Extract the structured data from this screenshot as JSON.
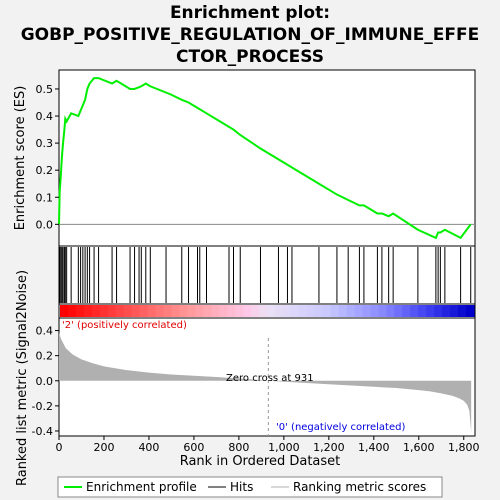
{
  "title_lines": [
    "Enrichment plot:",
    "GOBP_POSITIVE_REGULATION_OF_IMMUNE_EFFE",
    "CTOR_PROCESS"
  ],
  "labels": {
    "es_axis": "Enrichment score (ES)",
    "metric_axis": "Ranked list metric (Signal2Noise)",
    "x_axis": "Rank in Ordered Dataset",
    "positive": "'2' (positively correlated)",
    "negative": "'0' (negatively correlated)",
    "zero_cross": "Zero cross at 931"
  },
  "legend": {
    "profile": "Enrichment profile",
    "hits": "Hits",
    "ranking": "Ranking metric scores"
  },
  "colors": {
    "profile": "#00ee00",
    "hits": "#000000",
    "ranking": "#b0b0b0",
    "positive_text": "#e00000",
    "negative_text": "#0000e0"
  },
  "chart_data": {
    "type": "line",
    "x_range": [
      0,
      1850
    ],
    "x_ticks": [
      0,
      200,
      400,
      600,
      800,
      1000,
      1200,
      1400,
      1600,
      1800
    ],
    "es": {
      "ylim": [
        -0.08,
        0.57
      ],
      "y_ticks": [
        0.0,
        0.1,
        0.2,
        0.3,
        0.4,
        0.5
      ],
      "x": [
        0,
        3,
        8,
        13,
        18,
        24,
        28,
        34,
        54,
        86,
        96,
        106,
        116,
        126,
        136,
        156,
        176,
        236,
        256,
        316,
        336,
        366,
        386,
        406,
        496,
        546,
        576,
        616,
        656,
        756,
        776,
        806,
        896,
        1016,
        1036,
        1156,
        1236,
        1286,
        1336,
        1356,
        1416,
        1436,
        1466,
        1486,
        1596,
        1676,
        1686,
        1696,
        1716,
        1786,
        1831
      ],
      "y": [
        0.0,
        0.12,
        0.18,
        0.25,
        0.3,
        0.35,
        0.39,
        0.38,
        0.41,
        0.4,
        0.42,
        0.44,
        0.46,
        0.5,
        0.52,
        0.54,
        0.54,
        0.52,
        0.53,
        0.5,
        0.5,
        0.51,
        0.52,
        0.51,
        0.48,
        0.46,
        0.45,
        0.43,
        0.41,
        0.36,
        0.35,
        0.33,
        0.28,
        0.22,
        0.21,
        0.15,
        0.11,
        0.09,
        0.07,
        0.07,
        0.04,
        0.04,
        0.03,
        0.04,
        -0.02,
        -0.05,
        -0.03,
        -0.03,
        -0.02,
        -0.05,
        0.0
      ]
    },
    "hits": [
      3,
      8,
      13,
      18,
      24,
      28,
      34,
      54,
      86,
      96,
      106,
      116,
      126,
      136,
      156,
      176,
      236,
      256,
      316,
      336,
      356,
      366,
      386,
      406,
      476,
      546,
      576,
      616,
      626,
      656,
      756,
      776,
      806,
      896,
      976,
      1016,
      1036,
      1156,
      1236,
      1286,
      1336,
      1356,
      1416,
      1436,
      1466,
      1486,
      1596,
      1676,
      1686,
      1696,
      1716,
      1786,
      1831
    ],
    "metric": {
      "ylim": [
        -0.44,
        0.5
      ],
      "y_ticks": [
        -0.4,
        -0.2,
        0.0,
        0.2,
        0.4
      ],
      "x": [
        0,
        10,
        30,
        60,
        100,
        150,
        200,
        300,
        400,
        500,
        600,
        700,
        800,
        900,
        931,
        1000,
        1100,
        1200,
        1300,
        1400,
        1500,
        1600,
        1650,
        1700,
        1750,
        1780,
        1800,
        1815,
        1825,
        1833
      ],
      "y": [
        0.38,
        0.33,
        0.26,
        0.21,
        0.17,
        0.14,
        0.115,
        0.085,
        0.065,
        0.05,
        0.04,
        0.03,
        0.018,
        0.005,
        0.0,
        -0.008,
        -0.018,
        -0.028,
        -0.038,
        -0.048,
        -0.058,
        -0.075,
        -0.085,
        -0.1,
        -0.12,
        -0.14,
        -0.16,
        -0.19,
        -0.24,
        -0.41
      ]
    },
    "zero_cross": 931
  }
}
